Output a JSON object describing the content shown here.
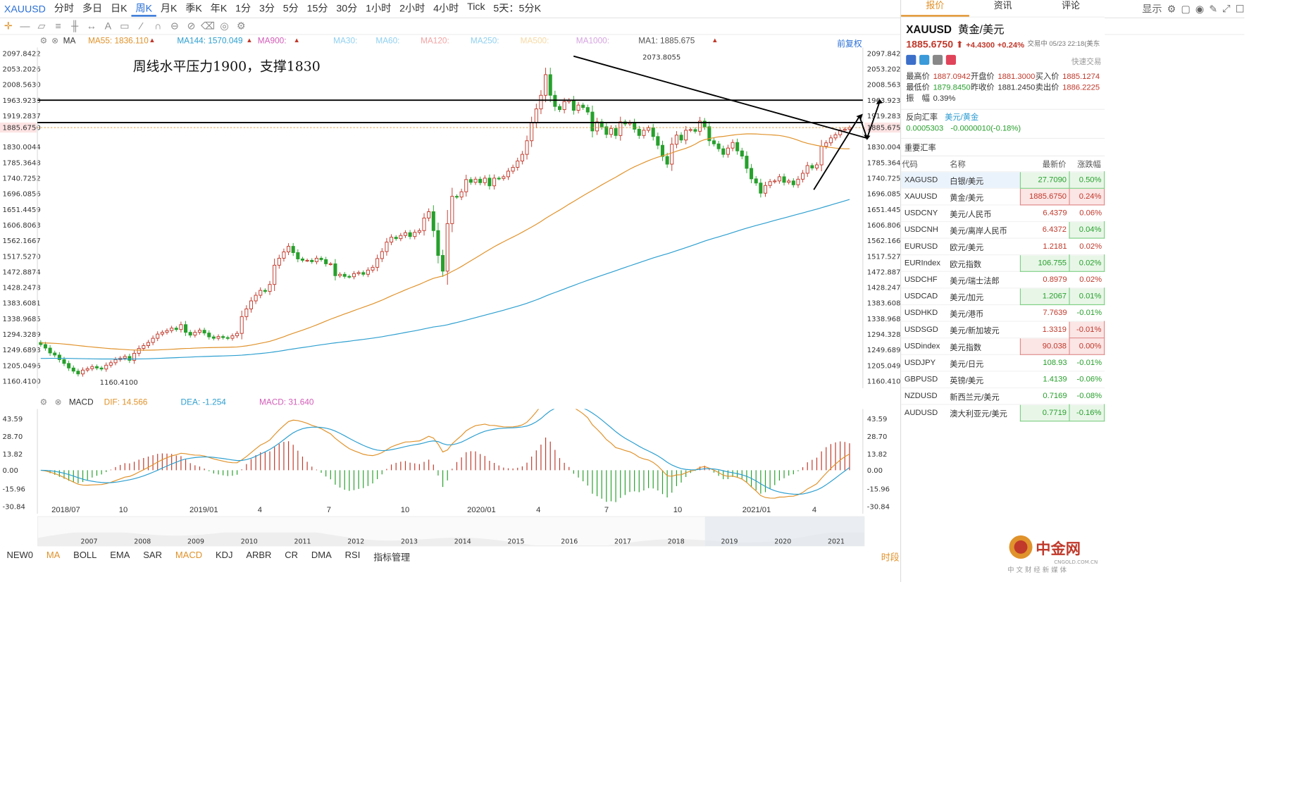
{
  "toolbar": {
    "symbol": "XAUUSD",
    "timeframes": [
      "分时",
      "多日",
      "日K",
      "周K",
      "月K",
      "季K",
      "年K",
      "1分",
      "3分",
      "5分",
      "15分",
      "30分",
      "1小时",
      "2小时",
      "4小时",
      "Tick",
      "5天：5分K"
    ],
    "active_timeframe": "周K",
    "display_label": "显示",
    "adjust_label": "前复权"
  },
  "ma_legend": {
    "ma_label": "MA",
    "items": [
      {
        "text": "MA55: 1836.110",
        "color": "#e0922b"
      },
      {
        "text": "MA144: 1570.049",
        "color": "#2d9fd0"
      },
      {
        "text": "MA900:",
        "color": "#d35cb8"
      },
      {
        "text": "MA30:",
        "color": "#8fd0f0"
      },
      {
        "text": "MA60:",
        "color": "#8fd0f0"
      },
      {
        "text": "MA120:",
        "color": "#f3a3a3"
      },
      {
        "text": "MA250:",
        "color": "#8fd0f0"
      },
      {
        "text": "MA500:",
        "color": "#f7d9a3"
      },
      {
        "text": "MA1000:",
        "color": "#d6a3e0"
      },
      {
        "text": "MA1: 1885.675",
        "color": "#555555"
      }
    ]
  },
  "annotation": "周线水平压力1900，支撑1830",
  "chart_data": [
    {
      "type": "candlestick",
      "title": "",
      "y_ticks": [
        "2097.8422",
        "2053.2026",
        "2008.5630",
        "1963.9233",
        "1919.2837",
        "1885.6750",
        "1830.0044",
        "1785.3648",
        "1740.7252",
        "1696.0856",
        "1651.4459",
        "1606.8063",
        "1562.1667",
        "1517.5270",
        "1472.8874",
        "1428.2478",
        "1383.6081",
        "1338.9685",
        "1294.3289",
        "1249.6893",
        "1205.0496",
        "1160.4100"
      ],
      "ylim": [
        1140,
        2115
      ],
      "x_ticks": [
        "2018/07",
        "10",
        "2019/01",
        "4",
        "7",
        "10",
        "2020/01",
        "4",
        "7",
        "10",
        "2021/01",
        "4"
      ],
      "last_price": 1885.675,
      "high_label": "2073.8055",
      "low_label": "1160.4100",
      "series": [
        {
          "name": "MA55",
          "color": "#e0922b"
        },
        {
          "name": "MA144",
          "color": "#2d9fd0"
        }
      ],
      "horizontal_lines": [
        1963.9233,
        1900
      ],
      "candles_close": [
        1265,
        1255,
        1241,
        1235,
        1222,
        1211,
        1198,
        1189,
        1181,
        1192,
        1196,
        1202,
        1198,
        1195,
        1206,
        1213,
        1222,
        1226,
        1231,
        1220,
        1240,
        1254,
        1262,
        1271,
        1283,
        1295,
        1300,
        1305,
        1312,
        1308,
        1322,
        1300,
        1292,
        1300,
        1306,
        1298,
        1287,
        1283,
        1288,
        1285,
        1283,
        1290,
        1297,
        1345,
        1367,
        1390,
        1406,
        1420,
        1417,
        1437,
        1492,
        1512,
        1530,
        1546,
        1528,
        1510,
        1506,
        1506,
        1502,
        1512,
        1508,
        1496,
        1496,
        1462,
        1466,
        1460,
        1459,
        1468,
        1471,
        1466,
        1478,
        1486,
        1511,
        1531,
        1558,
        1572,
        1568,
        1577,
        1585,
        1574,
        1586,
        1591,
        1627,
        1645,
        1591,
        1520,
        1475,
        1611,
        1689,
        1687,
        1702,
        1737,
        1729,
        1738,
        1728,
        1741,
        1719,
        1741,
        1740,
        1745,
        1761,
        1772,
        1790,
        1809,
        1848,
        1899,
        1939,
        1978,
        2037,
        1978,
        1946,
        1937,
        1960,
        1964,
        1935,
        1950,
        1943,
        1930,
        1876,
        1902,
        1888,
        1866,
        1883,
        1863,
        1902,
        1896,
        1901,
        1881,
        1863,
        1878,
        1885,
        1860,
        1835,
        1803,
        1781,
        1838,
        1864,
        1850,
        1878,
        1880,
        1875,
        1904,
        1888,
        1848,
        1839,
        1825,
        1809,
        1827,
        1843,
        1819,
        1804,
        1769,
        1739,
        1727,
        1698,
        1720,
        1731,
        1733,
        1745,
        1729,
        1733,
        1722,
        1738,
        1755,
        1777,
        1770,
        1779,
        1832,
        1842,
        1856,
        1865,
        1878,
        1881,
        1885.675
      ]
    },
    {
      "type": "macd",
      "title": "",
      "y_ticks": [
        "43.59",
        "28.70",
        "13.82",
        "0.00",
        "-15.96",
        "-30.84"
      ],
      "ylim": [
        -37,
        52
      ],
      "legend": [
        {
          "text": "DIF: 14.566",
          "color": "#e0922b"
        },
        {
          "text": "DEA: -1.254",
          "color": "#2d9fd0"
        },
        {
          "text": "MACD: 31.640",
          "color": "#d35cb8"
        }
      ]
    }
  ],
  "navigator": {
    "years": [
      "2007",
      "2008",
      "2009",
      "2010",
      "2011",
      "2012",
      "2013",
      "2014",
      "2015",
      "2016",
      "2017",
      "2018",
      "2019",
      "2020",
      "2021"
    ]
  },
  "indicators": {
    "items": [
      "NEW0",
      "MA",
      "BOLL",
      "EMA",
      "SAR",
      "MACD",
      "KDJ",
      "ARBR",
      "CR",
      "DMA",
      "RSI",
      "指标管理"
    ],
    "active": [
      "MA",
      "MACD"
    ],
    "time_label": "时段"
  },
  "panel": {
    "tabs": [
      "报价",
      "资讯",
      "评论"
    ],
    "active_tab": "报价",
    "symbol": "XAUUSD",
    "name": "黄金/美元",
    "price": "1885.6750",
    "change": "+4.4300",
    "change_pct": "+0.24%",
    "status": "交易中 05/23 22:18(美东",
    "quick_trade": "快速交易",
    "stats": [
      {
        "label": "最高价",
        "value": "1887.0942",
        "cls": "up"
      },
      {
        "label": "开盘价",
        "value": "1881.3000",
        "cls": "up"
      },
      {
        "label": "买入价",
        "value": "1885.1274",
        "cls": "up"
      },
      {
        "label": "最低价",
        "value": "1879.8450",
        "cls": "dn"
      },
      {
        "label": "昨收价",
        "value": "1881.2450",
        "cls": "plain"
      },
      {
        "label": "卖出价",
        "value": "1886.2225",
        "cls": "up"
      },
      {
        "label": "振　幅",
        "value": "0.39%",
        "cls": "plain"
      }
    ],
    "reverse_label": "反向汇率",
    "reverse_pair": "美元/黄金",
    "reverse_value": "0.0005303",
    "reverse_change": "-0.0000010(-0.18%)",
    "rates_title": "重要汇率",
    "rates_headers": [
      "代码",
      "名称",
      "最新价",
      "涨跌幅"
    ],
    "rates": [
      {
        "code": "XAGUSD",
        "name": "白银/美元",
        "price": "27.7090",
        "pct": "0.50%",
        "pbox": "pos",
        "cbox": "pos"
      },
      {
        "code": "XAUUSD",
        "name": "黄金/美元",
        "price": "1885.6750",
        "pct": "0.24%",
        "pbox": "neg",
        "cbox": "neg"
      },
      {
        "code": "USDCNY",
        "name": "美元/人民币",
        "price": "6.4379",
        "pct": "0.06%",
        "pbox": "up",
        "cbox": "up"
      },
      {
        "code": "USDCNH",
        "name": "美元/离岸人民币",
        "price": "6.4372",
        "pct": "0.04%",
        "pbox": "up",
        "cbox": "pos"
      },
      {
        "code": "EURUSD",
        "name": "欧元/美元",
        "price": "1.2181",
        "pct": "0.02%",
        "pbox": "up",
        "cbox": "up"
      },
      {
        "code": "EURIndex",
        "name": "欧元指数",
        "price": "106.755",
        "pct": "0.02%",
        "pbox": "pos",
        "cbox": "pos"
      },
      {
        "code": "USDCHF",
        "name": "美元/瑞士法郎",
        "price": "0.8979",
        "pct": "0.02%",
        "pbox": "up",
        "cbox": "up"
      },
      {
        "code": "USDCAD",
        "name": "美元/加元",
        "price": "1.2067",
        "pct": "0.01%",
        "pbox": "pos",
        "cbox": "pos"
      },
      {
        "code": "USDHKD",
        "name": "美元/港币",
        "price": "7.7639",
        "pct": "-0.01%",
        "pbox": "up",
        "cbox": "dn"
      },
      {
        "code": "USDSGD",
        "name": "美元/新加坡元",
        "price": "1.3319",
        "pct": "-0.01%",
        "pbox": "up",
        "cbox": "neg"
      },
      {
        "code": "USDindex",
        "name": "美元指数",
        "price": "90.038",
        "pct": "0.00%",
        "pbox": "neg",
        "cbox": "neg"
      },
      {
        "code": "USDJPY",
        "name": "美元/日元",
        "price": "108.93",
        "pct": "-0.01%",
        "pbox": "dn",
        "cbox": "dn"
      },
      {
        "code": "GBPUSD",
        "name": "英镑/美元",
        "price": "1.4139",
        "pct": "-0.06%",
        "pbox": "dn",
        "cbox": "dn"
      },
      {
        "code": "NZDUSD",
        "name": "新西兰元/美元",
        "price": "0.7169",
        "pct": "-0.08%",
        "pbox": "dn",
        "cbox": "dn"
      },
      {
        "code": "AUDUSD",
        "name": "澳大利亚元/美元",
        "price": "0.7719",
        "pct": "-0.16%",
        "pbox": "pos",
        "cbox": "pos"
      }
    ]
  },
  "logo": {
    "text": "中金网",
    "sub": "CNGOLD.COM.CN",
    "tagline": "中 文 财 经 新 媒 体"
  },
  "colors": {
    "up": "#c0392b",
    "down": "#27a02c",
    "accent": "#2a6fd6",
    "orange": "#e0922b",
    "cyan": "#2d9fd0"
  }
}
